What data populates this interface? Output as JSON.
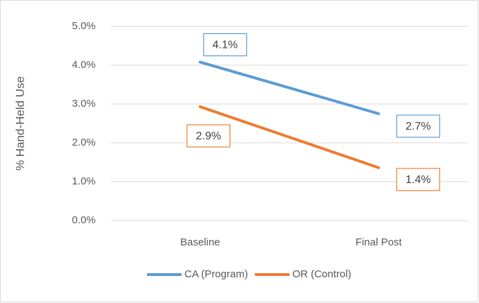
{
  "chart_data": {
    "type": "line",
    "y_label": "% Hand-Held Use",
    "categories": [
      "Baseline",
      "Final Post"
    ],
    "series": [
      {
        "name": "CA (Program)",
        "color": "#5b9bd5",
        "values": [
          4.08,
          2.75
        ],
        "value_labels": [
          "4.1%",
          "2.7%"
        ]
      },
      {
        "name": "OR (Control)",
        "color": "#ed7d31",
        "values": [
          2.93,
          1.36
        ],
        "value_labels": [
          "2.9%",
          "1.4%"
        ]
      }
    ],
    "ylim": [
      0,
      5
    ],
    "yticks": [
      {
        "value": 0,
        "label": "0.0%"
      },
      {
        "value": 1,
        "label": "1.0%"
      },
      {
        "value": 2,
        "label": "2.0%"
      },
      {
        "value": 3,
        "label": "3.0%"
      },
      {
        "value": 4,
        "label": "4.0%"
      },
      {
        "value": 5,
        "label": "5.0%"
      }
    ],
    "grid": true,
    "legend": "bottom"
  }
}
